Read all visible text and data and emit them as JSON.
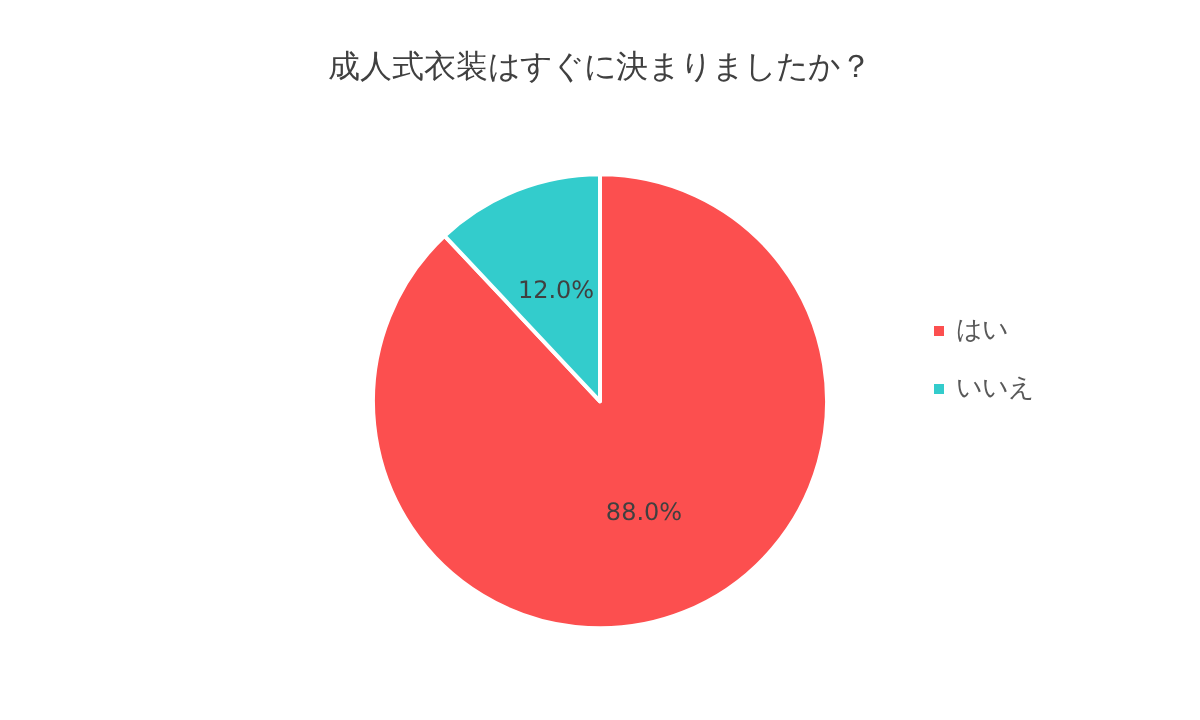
{
  "chart_data": {
    "type": "pie",
    "title": "成人式衣装はすぐに決まりましたか？",
    "categories": [
      "はい",
      "いいえ"
    ],
    "values": [
      88.0,
      12.0
    ],
    "colors": [
      "#fc4f4f",
      "#33cccc"
    ],
    "value_labels": [
      "88.0%",
      "12.0%"
    ],
    "legend": "right"
  }
}
